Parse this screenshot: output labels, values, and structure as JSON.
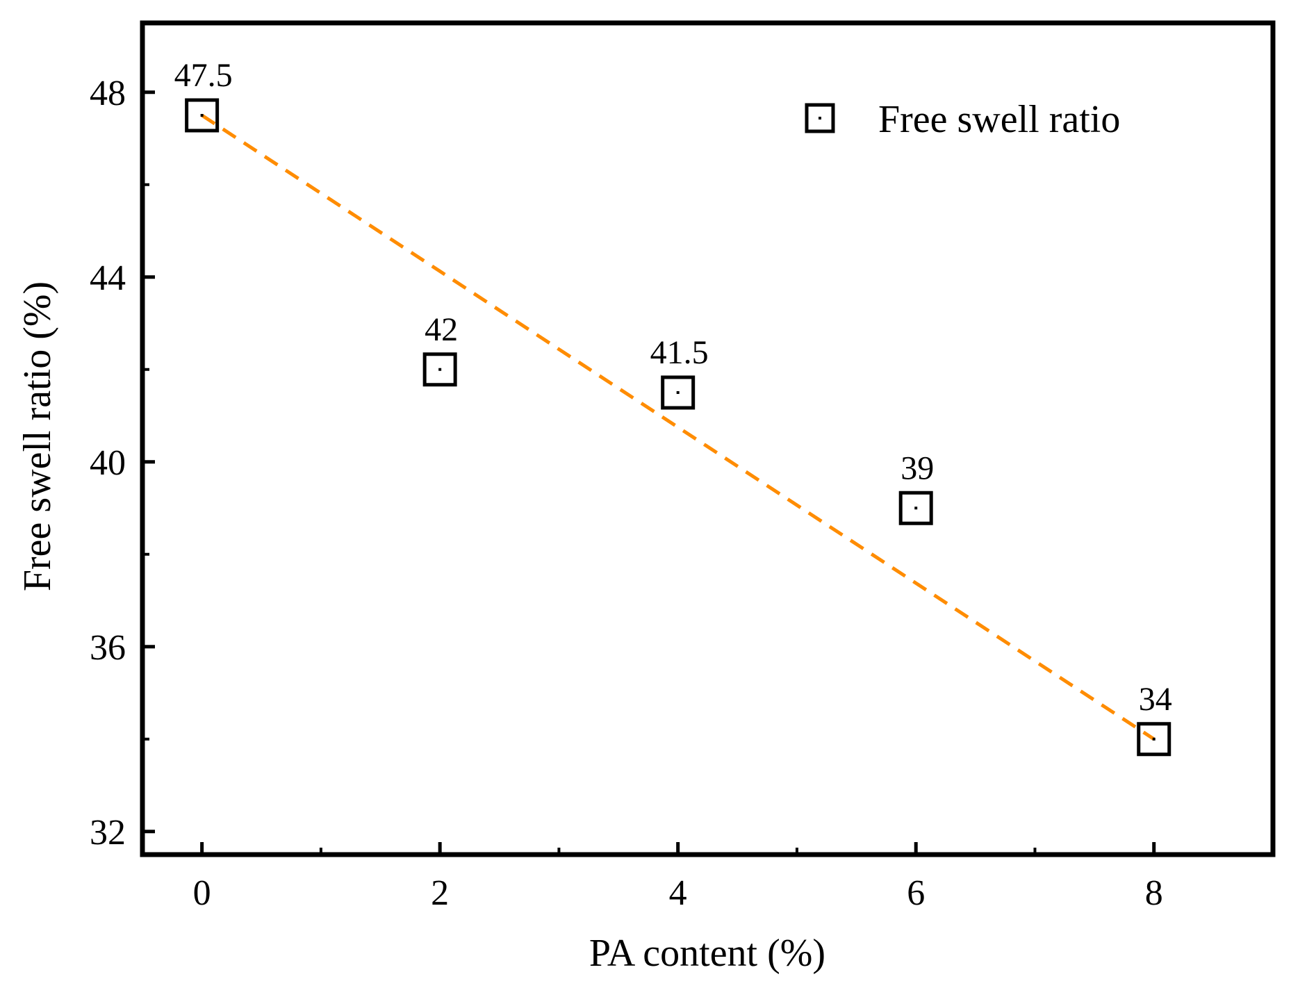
{
  "chart_data": {
    "type": "scatter",
    "title": "",
    "xlabel": "PA content (%)",
    "ylabel": "Free swell ratio (%)",
    "xlim": [
      -0.5,
      9.0
    ],
    "ylim": [
      31.5,
      49.5
    ],
    "xticks": [
      0,
      2,
      4,
      6,
      8
    ],
    "xtick_labels": [
      "0",
      "2",
      "4",
      "6",
      "8"
    ],
    "yticks": [
      32,
      36,
      40,
      44,
      48
    ],
    "ytick_labels": [
      "32",
      "36",
      "40",
      "44",
      "48"
    ],
    "grid": false,
    "legend_position": "top-right",
    "series": [
      {
        "name": "Free swell ratio",
        "marker": "square",
        "color": "#000000",
        "x": [
          0,
          2,
          4,
          6,
          8
        ],
        "y": [
          47.5,
          42,
          41.5,
          39,
          34
        ],
        "labels": [
          "47.5",
          "42",
          "41.5",
          "39",
          "34"
        ]
      }
    ],
    "trendline": {
      "style": "dashed",
      "color": "#ff8c00",
      "x": [
        0,
        8
      ],
      "y": [
        47.5,
        34
      ]
    }
  }
}
